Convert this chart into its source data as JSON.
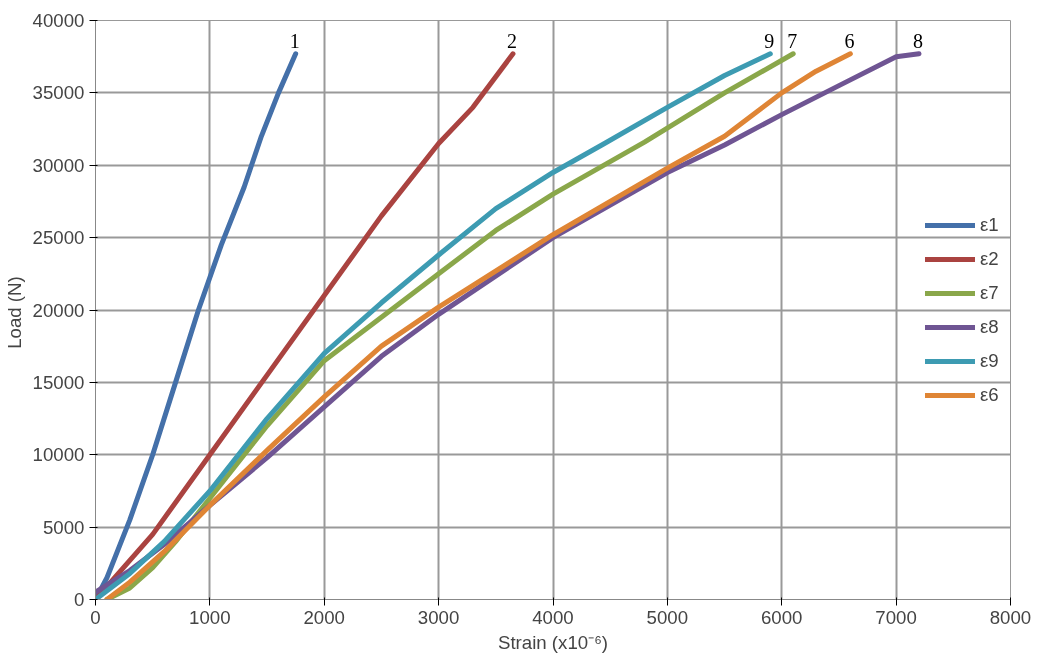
{
  "chart_data": {
    "type": "line",
    "xlabel": "Strain (x10⁻⁶)",
    "ylabel": "Load  (N)",
    "xlim": [
      0,
      8000
    ],
    "ylim": [
      0,
      40000
    ],
    "xticks": [
      0,
      1000,
      2000,
      3000,
      4000,
      5000,
      6000,
      7000,
      8000
    ],
    "yticks": [
      0,
      5000,
      10000,
      15000,
      20000,
      25000,
      30000,
      35000,
      40000
    ],
    "grid": true,
    "legend": "right",
    "marker": "none",
    "line_style": "solid",
    "series": [
      {
        "name": "ε1",
        "color": "#4470a9",
        "x": [
          0,
          100,
          300,
          500,
          700,
          900,
          1100,
          1300,
          1450,
          1600,
          1750
        ],
        "values": [
          0,
          1500,
          5500,
          10000,
          15000,
          20000,
          24500,
          28500,
          32000,
          35000,
          37700
        ]
      },
      {
        "name": "ε2",
        "color": "#aa4340",
        "x": [
          0,
          500,
          1000,
          1500,
          2000,
          2500,
          3000,
          3300,
          3650
        ],
        "values": [
          0,
          4500,
          10000,
          15500,
          21000,
          26500,
          31500,
          34000,
          37700
        ]
      },
      {
        "name": "ε7",
        "color": "#8aa74a",
        "x": [
          100,
          300,
          500,
          700,
          1000,
          1500,
          2000,
          2500,
          3000,
          3500,
          4000,
          4800,
          5500,
          6100
        ],
        "values": [
          0,
          800,
          2200,
          4000,
          7000,
          12000,
          16500,
          19500,
          22500,
          25500,
          28000,
          31600,
          35000,
          37700
        ]
      },
      {
        "name": "ε8",
        "color": "#6f5593",
        "x": [
          0,
          300,
          600,
          1000,
          1500,
          2000,
          2500,
          3000,
          4000,
          5000,
          5500,
          6000,
          6500,
          7000,
          7200
        ],
        "values": [
          500,
          2000,
          3800,
          6500,
          9800,
          13300,
          16800,
          19700,
          25000,
          29500,
          31400,
          33500,
          35500,
          37500,
          37700
        ]
      },
      {
        "name": "ε9",
        "color": "#3d9bb2",
        "x": [
          0,
          300,
          600,
          1000,
          1500,
          2000,
          2500,
          3000,
          3500,
          4000,
          4450,
          5000,
          5500,
          5900
        ],
        "values": [
          0,
          1800,
          4000,
          7500,
          12500,
          17000,
          20500,
          23800,
          27000,
          29500,
          31500,
          34000,
          36200,
          37700
        ]
      },
      {
        "name": "ε6",
        "color": "#df8535",
        "x": [
          100,
          300,
          600,
          1000,
          1500,
          2000,
          2500,
          3000,
          4000,
          5000,
          5500,
          6000,
          6300,
          6600
        ],
        "values": [
          0,
          1200,
          3300,
          6500,
          10300,
          14000,
          17500,
          20200,
          25200,
          29800,
          32000,
          35000,
          36500,
          37700
        ]
      }
    ],
    "annotations": [
      {
        "text": "1",
        "x": 1750,
        "y": 37700
      },
      {
        "text": "2",
        "x": 3650,
        "y": 37700
      },
      {
        "text": "9",
        "x": 5900,
        "y": 37700
      },
      {
        "text": "7",
        "x": 6100,
        "y": 37700
      },
      {
        "text": "6",
        "x": 6600,
        "y": 37700
      },
      {
        "text": "8",
        "x": 7200,
        "y": 37700
      }
    ]
  }
}
